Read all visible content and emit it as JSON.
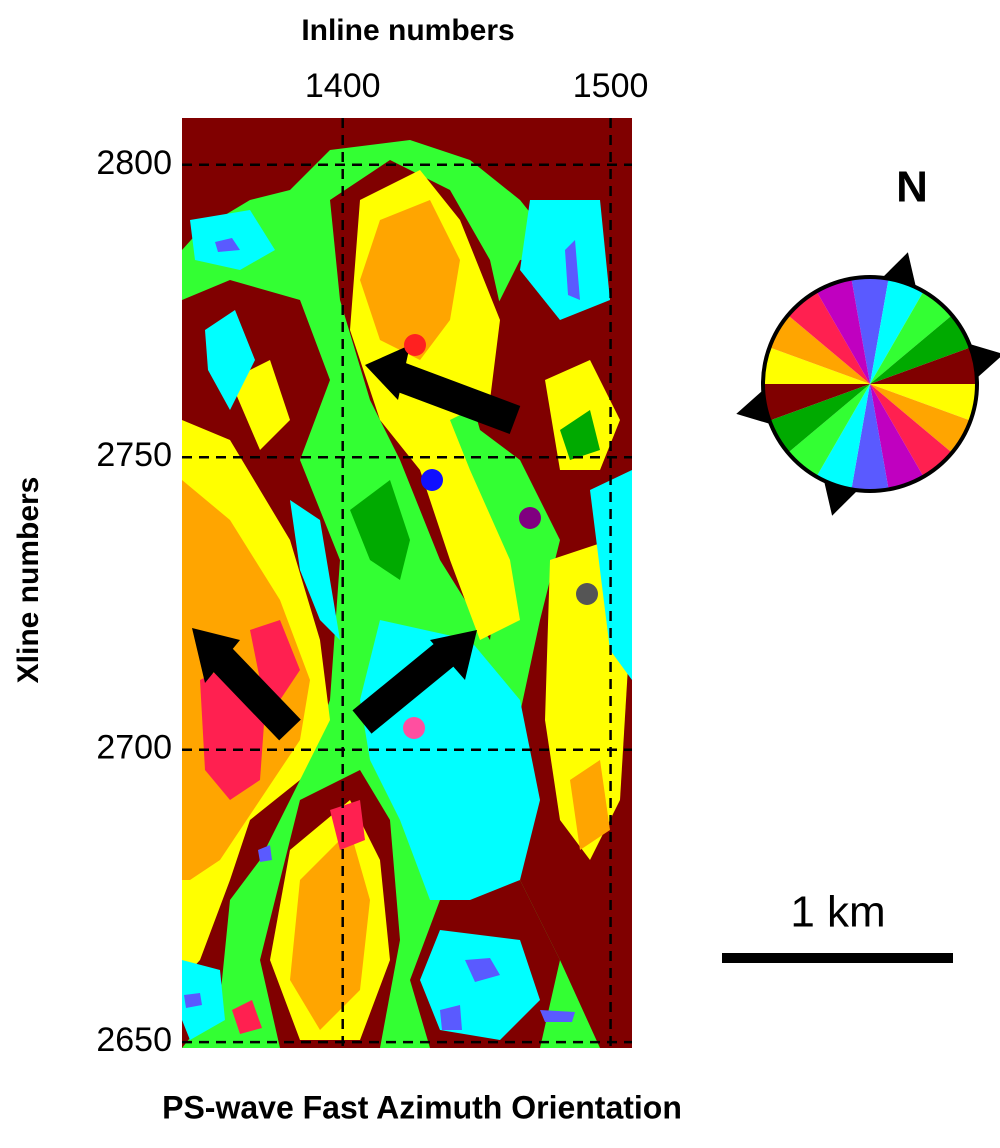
{
  "title": "PS-wave Fast Azimuth  Orientation",
  "x_axis": {
    "label": "Inline numbers",
    "lim": [
      1340,
      1508
    ],
    "ticks": [
      1400,
      1500
    ]
  },
  "y_axis": {
    "label": "Xline numbers",
    "lim": [
      2649,
      2808
    ],
    "ticks": [
      2800,
      2750,
      2700,
      2650
    ]
  },
  "compass": {
    "label": "N"
  },
  "scale_bar": {
    "label": "1 km"
  }
}
